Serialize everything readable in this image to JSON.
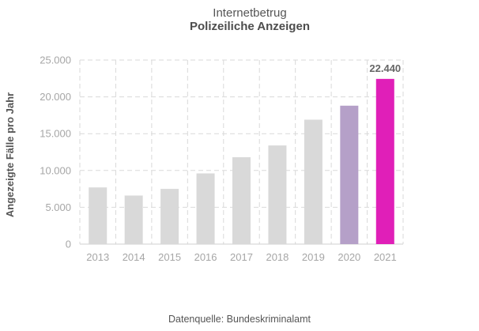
{
  "chart_data": {
    "type": "bar",
    "title": "Internetbetrug",
    "subtitle": "Polizeiliche Anzeigen",
    "xlabel": "",
    "ylabel": "Angezeigte  Fälle pro Jahr",
    "categories": [
      "2013",
      "2014",
      "2015",
      "2016",
      "2017",
      "2018",
      "2019",
      "2020",
      "2021"
    ],
    "values": [
      7700,
      6600,
      7500,
      9600,
      11800,
      13400,
      16900,
      18800,
      22440
    ],
    "bar_colors": [
      "#d9d9d9",
      "#d9d9d9",
      "#d9d9d9",
      "#d9d9d9",
      "#d9d9d9",
      "#d9d9d9",
      "#d9d9d9",
      "#b5a0c8",
      "#e01fb8"
    ],
    "ylim": [
      0,
      25000
    ],
    "yticks": [
      0,
      5000,
      10000,
      15000,
      20000,
      25000
    ],
    "ytick_labels": [
      "0",
      "5.000",
      "10.000",
      "15.000",
      "20.000",
      "25.000"
    ],
    "data_labels": [
      {
        "index": 8,
        "text": "22.440"
      }
    ],
    "grid": true,
    "source": "Datenquelle:  Bundeskriminalamt"
  }
}
